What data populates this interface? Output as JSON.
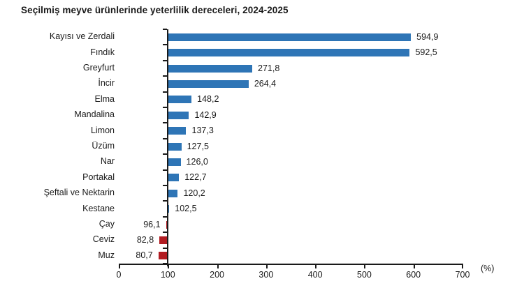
{
  "title": "Seçilmiş meyve ürünlerinde yeterlilik dereceleri, 2024-2025",
  "chart_data": {
    "type": "bar",
    "orientation": "horizontal",
    "title": "Seçilmiş meyve ürünlerinde yeterlilik dereceleri, 2024-2025",
    "baseline": 100,
    "xlim": [
      0,
      700
    ],
    "x_ticks": [
      "0",
      "100",
      "200",
      "300",
      "400",
      "500",
      "600",
      "700"
    ],
    "x_tick_values": [
      0,
      100,
      200,
      300,
      400,
      500,
      600,
      700
    ],
    "unit_label": "(%)",
    "grid": false,
    "legend": false,
    "categories": [
      "Kayısı ve Zerdali",
      "Fındık",
      "Greyfurt",
      "İncir",
      "Elma",
      "Mandalina",
      "Limon",
      "Üzüm",
      "Nar",
      "Portakal",
      "Şeftali ve Nektarin",
      "Kestane",
      "Çay",
      "Ceviz",
      "Muz"
    ],
    "values": [
      594.9,
      592.5,
      271.8,
      264.4,
      148.2,
      142.9,
      137.3,
      127.5,
      126.0,
      122.7,
      120.2,
      102.5,
      96.1,
      82.8,
      80.7
    ],
    "value_labels": [
      "594,9",
      "592,5",
      "271,8",
      "264,4",
      "148,2",
      "142,9",
      "137,3",
      "127,5",
      "126,0",
      "122,7",
      "120,2",
      "102,5",
      "96,1",
      "82,8",
      "80,7"
    ],
    "colors": {
      "above_baseline": "#2E75B6",
      "below_baseline": "#B11C22",
      "axis": "#1a1a1a",
      "text": "#1a1a1a"
    }
  }
}
